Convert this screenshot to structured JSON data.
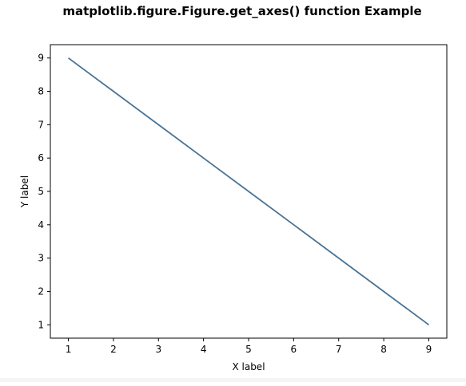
{
  "chart_data": {
    "type": "line",
    "title": "matplotlib.figure.Figure.get_axes() function Example",
    "xlabel": "X label",
    "ylabel": "Y label",
    "x": [
      1,
      2,
      3,
      4,
      5,
      6,
      7,
      8,
      9
    ],
    "series": [
      {
        "values": [
          9,
          8,
          7,
          6,
          5,
          4,
          3,
          2,
          1
        ],
        "color": "#4a7394"
      }
    ],
    "xlim": [
      0.6,
      9.4
    ],
    "ylim": [
      0.6,
      9.4
    ],
    "xticks": [
      "1",
      "2",
      "3",
      "4",
      "5",
      "6",
      "7",
      "8",
      "9"
    ],
    "yticks": [
      "1",
      "2",
      "3",
      "4",
      "5",
      "6",
      "7",
      "8",
      "9"
    ],
    "grid": false
  }
}
